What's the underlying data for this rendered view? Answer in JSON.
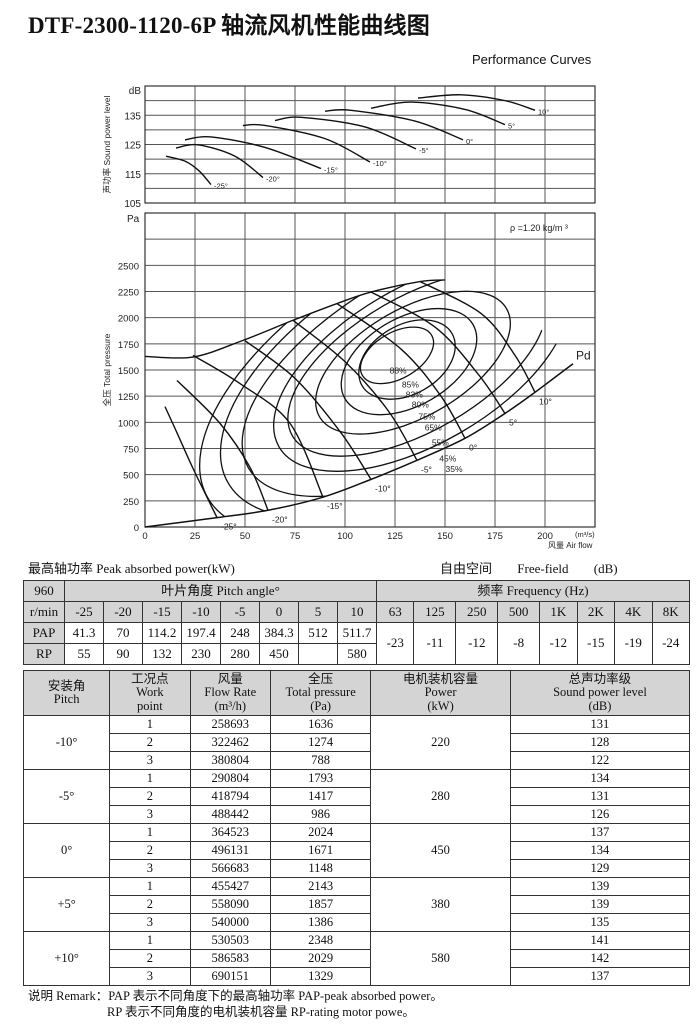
{
  "title": "DTF-2300-1120-6P 轴流风机性能曲线图",
  "subtitle": "Performance Curves",
  "chart_data": [
    {
      "type": "line",
      "name_key": "sound",
      "ylabel": "声功率 Sound power level",
      "yunit": "dB",
      "ylim": [
        105,
        145
      ],
      "xlim": [
        0,
        225
      ],
      "yticks": [
        105,
        115,
        125,
        135
      ],
      "grid": true,
      "series": [
        {
          "name": "-25°",
          "points": [
            [
              10.5,
              121
            ],
            [
              20,
              119.3
            ],
            [
              27,
              116
            ],
            [
              33,
              111.3
            ]
          ]
        },
        {
          "name": "-20°",
          "points": [
            [
              15.5,
              123.8
            ],
            [
              26.5,
              124.9
            ],
            [
              45,
              121
            ],
            [
              59,
              113.7
            ]
          ]
        },
        {
          "name": "-15°",
          "points": [
            [
              20,
              126.6
            ],
            [
              33,
              127.6
            ],
            [
              60,
              124
            ],
            [
              88,
              116.8
            ]
          ]
        },
        {
          "name": "-10°",
          "points": [
            [
              49,
              131.5
            ],
            [
              60,
              131.5
            ],
            [
              90,
              127
            ],
            [
              112.5,
              119
            ]
          ]
        },
        {
          "name": "-5°",
          "points": [
            [
              65,
              133.2
            ],
            [
              78,
              134.3
            ],
            [
              110,
              131
            ],
            [
              135.5,
              123.5
            ]
          ]
        },
        {
          "name": "0°",
          "points": [
            [
              90,
              136.4
            ],
            [
              103,
              136.7
            ],
            [
              135,
              133
            ],
            [
              159,
              126.6
            ]
          ]
        },
        {
          "name": "5°",
          "points": [
            [
              113,
              137.4
            ],
            [
              133,
              139.5
            ],
            [
              160,
              137
            ],
            [
              180,
              131.8
            ]
          ]
        },
        {
          "name": "10°",
          "points": [
            [
              136.5,
              140.9
            ],
            [
              158,
              142
            ],
            [
              180,
              140
            ],
            [
              195,
              136.7
            ]
          ]
        }
      ]
    },
    {
      "type": "line",
      "name_key": "pressure",
      "ylabel": "全压 Total pressure",
      "yunit": "Pa",
      "xlabel": "风量 Air flow",
      "xunit": "(m³/s)",
      "xlim": [
        0,
        225
      ],
      "ylim": [
        0,
        3000
      ],
      "xticks": [
        0,
        25,
        50,
        75,
        100,
        125,
        150,
        175,
        200
      ],
      "yticks": [
        0,
        250,
        500,
        750,
        1000,
        1250,
        1500,
        1750,
        2000,
        2250,
        2500
      ],
      "grid": true,
      "density_label": "ρ =1.20 kg/m ³",
      "pitch_curves": [
        {
          "name": "-25°",
          "points": [
            [
              10,
              1150
            ],
            [
              16,
              900
            ],
            [
              24,
              560
            ],
            [
              36,
              90
            ]
          ]
        },
        {
          "name": "-20°",
          "points": [
            [
              16,
              1400
            ],
            [
              37.5,
              990
            ],
            [
              52.5,
              570
            ],
            [
              61.5,
              160
            ]
          ]
        },
        {
          "name": "-15°",
          "points": [
            [
              24,
              1640
            ],
            [
              47.5,
              1370
            ],
            [
              72.5,
              990
            ],
            [
              89,
              285
            ]
          ]
        },
        {
          "name": "-10°",
          "points": [
            [
              50,
              1780
            ],
            [
              75,
              1420
            ],
            [
              98,
              900
            ],
            [
              113,
              455
            ]
          ]
        },
        {
          "name": "-5°",
          "points": [
            [
              74,
              1975
            ],
            [
              100,
              1580
            ],
            [
              122,
              1100
            ],
            [
              136,
              637
            ]
          ]
        },
        {
          "name": "0°",
          "points": [
            [
              96,
              2135
            ],
            [
              128,
              1700
            ],
            [
              148,
              1250
            ],
            [
              160,
              847
            ]
          ]
        },
        {
          "name": "5°",
          "points": [
            [
              113,
              2245
            ],
            [
              145,
              1910
            ],
            [
              167,
              1450
            ],
            [
              180,
              1085
            ]
          ]
        },
        {
          "name": "10°",
          "points": [
            [
              137.5,
              2345
            ],
            [
              168,
              2040
            ],
            [
              185,
              1640
            ],
            [
              195,
              1287
            ]
          ]
        }
      ],
      "surge_line": [
        [
          0,
          1630
        ],
        [
          24,
          1624
        ],
        [
          49,
          1783
        ],
        [
          74,
          1975
        ],
        [
          96,
          2135
        ],
        [
          113,
          2245
        ],
        [
          137.5,
          2345
        ],
        [
          150,
          2360
        ]
      ],
      "pd_curve": {
        "name": "Pd",
        "points": [
          [
            0,
            0
          ],
          [
            36,
            90
          ],
          [
            61.5,
            160
          ],
          [
            89,
            285
          ],
          [
            113,
            455
          ],
          [
            136,
            637
          ],
          [
            160,
            847
          ],
          [
            180,
            1085
          ],
          [
            195,
            1287
          ],
          [
            214,
            1560
          ]
        ]
      },
      "efficiency_contours": [
        {
          "name": "88%",
          "center": [
            126,
            1640
          ],
          "rx": 20,
          "ry": 220
        },
        {
          "name": "85%",
          "center": [
            131,
            1600
          ],
          "rx": 26,
          "ry": 330
        },
        {
          "name": "83%",
          "center": [
            132,
            1580
          ],
          "rx": 37,
          "ry": 420
        },
        {
          "name": "80%",
          "center": [
            134,
            1570
          ],
          "rx": 54,
          "ry": 515
        },
        {
          "name": "75%",
          "center": [
            136,
            1560
          ],
          "rx": 72,
          "ry": 640
        },
        {
          "name": "65%",
          "center": [
            138,
            1550
          ],
          "rx": 82,
          "ry": 750
        },
        {
          "name": "55%",
          "center": [
            140,
            1540
          ],
          "rx": 102,
          "ry": 900
        },
        {
          "name": "45%",
          "center": [
            142,
            1530
          ],
          "rx": 116,
          "ry": 1065
        },
        {
          "name": "35%",
          "center": [
            144,
            1520
          ],
          "rx": 130,
          "ry": 1170
        }
      ]
    }
  ],
  "power_caption": "最高轴功率 Peak absorbed power(kW)",
  "noise_caption": {
    "zh": "自由空间",
    "en": "Free-field",
    "unit": "(dB)"
  },
  "table1": {
    "speed": "960",
    "speed_unit": "r/min",
    "pitch_header": "叶片角度 Pitch angle°",
    "freq_header": "频率 Frequency     (Hz)",
    "pitches": [
      "-25",
      "-20",
      "-15",
      "-10",
      "-5",
      "0",
      "5",
      "10"
    ],
    "freqs": [
      "63",
      "125",
      "250",
      "500",
      "1K",
      "2K",
      "4K",
      "8K"
    ],
    "pap_label": "PAP",
    "rp_label": "RP",
    "pap": [
      "41.3",
      "70",
      "114.2",
      "197.4",
      "248",
      "384.3",
      "512",
      "511.7"
    ],
    "rp": [
      "55",
      "90",
      "132",
      "230",
      "280",
      "450",
      "",
      "580"
    ],
    "corrections": [
      "-23",
      "-11",
      "-12",
      "-8",
      "-12",
      "-15",
      "-19",
      "-24"
    ]
  },
  "table2": {
    "headers": {
      "pitch": [
        "安装角",
        "Pitch"
      ],
      "work": [
        "工况点",
        "Work",
        "point"
      ],
      "flow": [
        "风量",
        "Flow Rate",
        "(m³/h)"
      ],
      "pressure": [
        "全压",
        "Total pressure",
        "(Pa)"
      ],
      "power": [
        "电机装机容量",
        "Power",
        "(kW)"
      ],
      "sound": [
        "总声功率级",
        "Sound power level",
        "(dB)"
      ]
    },
    "groups": [
      {
        "pitch": "-10°",
        "power": "220",
        "rows": [
          [
            "1",
            "258693",
            "1636",
            "131"
          ],
          [
            "2",
            "322462",
            "1274",
            "128"
          ],
          [
            "3",
            "380804",
            "788",
            "122"
          ]
        ]
      },
      {
        "pitch": "-5°",
        "power": "280",
        "rows": [
          [
            "1",
            "290804",
            "1793",
            "134"
          ],
          [
            "2",
            "418794",
            "1417",
            "131"
          ],
          [
            "3",
            "488442",
            "986",
            "126"
          ]
        ]
      },
      {
        "pitch": "0°",
        "power": "450",
        "rows": [
          [
            "1",
            "364523",
            "2024",
            "137"
          ],
          [
            "2",
            "496131",
            "1671",
            "134"
          ],
          [
            "3",
            "566683",
            "1148",
            "129"
          ]
        ]
      },
      {
        "pitch": "+5°",
        "power": "380",
        "rows": [
          [
            "1",
            "455427",
            "2143",
            "139"
          ],
          [
            "2",
            "558090",
            "1857",
            "139"
          ],
          [
            "3",
            "540000",
            "1386",
            "135"
          ]
        ]
      },
      {
        "pitch": "+10°",
        "power": "580",
        "rows": [
          [
            "1",
            "530503",
            "2348",
            "141"
          ],
          [
            "2",
            "586583",
            "2029",
            "142"
          ],
          [
            "3",
            "690151",
            "1329",
            "137"
          ]
        ]
      }
    ]
  },
  "remark": {
    "line1": "说明 Remark：PAP 表示不同角度下的最高轴功率 PAP-peak absorbed power。",
    "line2": "RP 表示不同角度的电机装机容量 RP-rating motor powe。"
  }
}
